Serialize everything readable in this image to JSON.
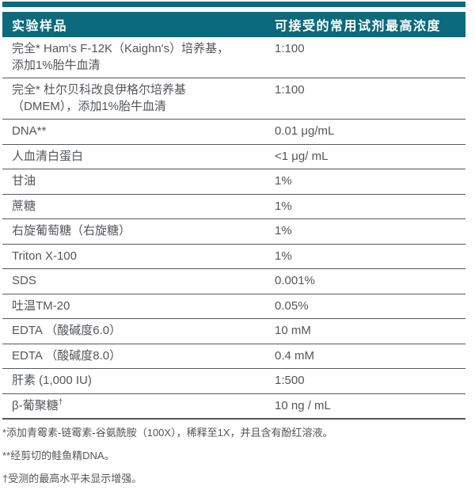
{
  "colors": {
    "teal_header": "#0b6a7c",
    "body_text": "#54565a",
    "separator_line": "#56585b",
    "header_text": "#ffffff"
  },
  "table": {
    "headers": [
      "实验样品",
      "可接受的常用试剂最高浓度"
    ],
    "rows": [
      {
        "sample": "完全* Ham's F-12K（Kaighn's）培养基，\n添加1%胎牛血清",
        "value": "1:100"
      },
      {
        "sample": "完全* 杜尔贝科改良伊格尔培养基\n（DMEM），添加1%胎牛血清",
        "value": "1:100"
      },
      {
        "sample": "DNA**",
        "value": "0.01 μg/mL"
      },
      {
        "sample": "人血清白蛋白",
        "value": "<1 μg/ mL"
      },
      {
        "sample": "甘油",
        "value": "1%"
      },
      {
        "sample": "蔗糖",
        "value": "1%"
      },
      {
        "sample": "右旋葡萄糖（右旋糖）",
        "value": "1%"
      },
      {
        "sample": "Triton X-100",
        "value": "1%"
      },
      {
        "sample": "SDS",
        "value": "0.001%"
      },
      {
        "sample": "吐温TM-20",
        "value": "0.05%"
      },
      {
        "sample": "EDTA （酸碱度6.0）",
        "value": "10 mM"
      },
      {
        "sample": "EDTA （酸碱度8.0）",
        "value": "0.4 mM"
      },
      {
        "sample": "肝素 (1,000 IU)",
        "value": "1:500"
      },
      {
        "sample": "β-葡聚糖",
        "sup": "†",
        "value": "10 ng / mL"
      }
    ]
  },
  "footnotes": [
    "*添加青霉素-链霉素-谷氨酰胺（100X），稀释至1X，并且含有酚红溶液。",
    "**经剪切的鲑鱼精DNA。",
    "†受测的最高水平未显示增强。"
  ]
}
